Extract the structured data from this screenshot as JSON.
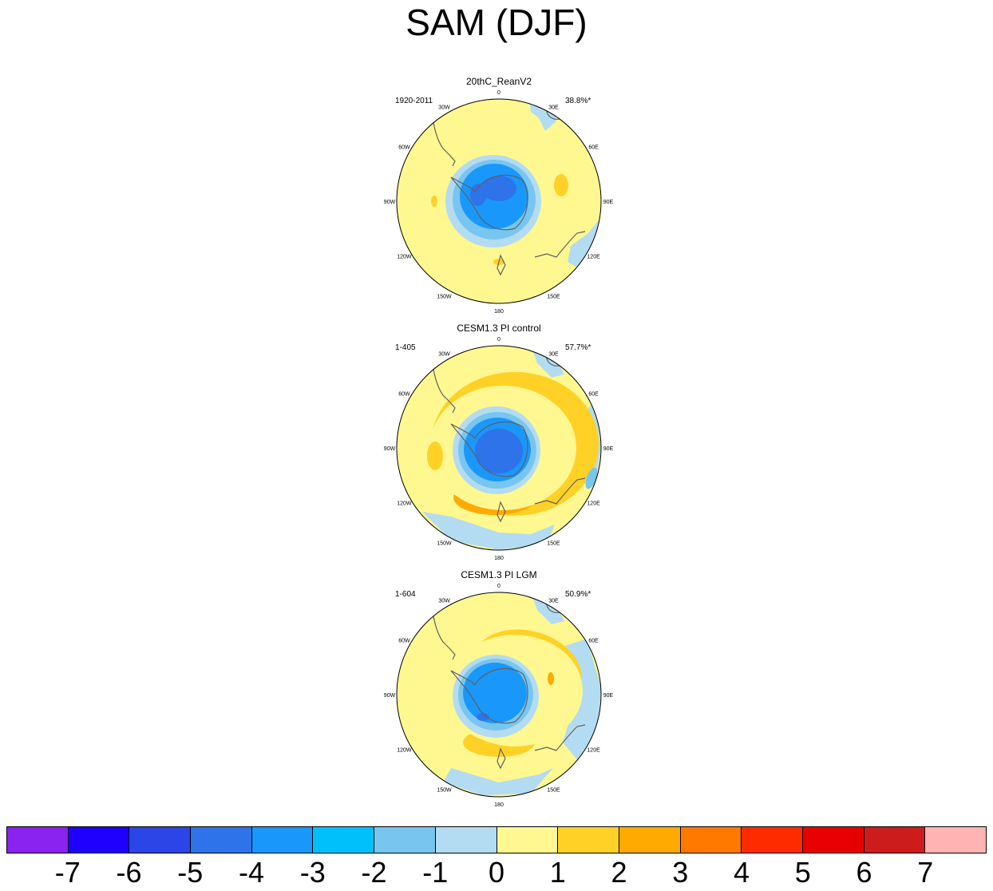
{
  "title": "SAM (DJF)",
  "lon_labels": [
    "0",
    "30E",
    "60E",
    "90E",
    "120E",
    "150E",
    "180",
    "150W",
    "120W",
    "90W",
    "60W",
    "30W"
  ],
  "panels": [
    {
      "title": "20thC_ReanV2",
      "period": "1920-2011",
      "pct": "38.8%*",
      "pattern": "rean"
    },
    {
      "title": "CESM1.3 PI control",
      "period": "1-405",
      "pct": "57.7%*",
      "pattern": "pic"
    },
    {
      "title": "CESM1.3 PI LGM",
      "period": "1-604",
      "pct": "50.9%*",
      "pattern": "lgm"
    }
  ],
  "colorbar": {
    "colors": [
      "#8a22f0",
      "#1f00ff",
      "#2b45e6",
      "#2f73ea",
      "#1a97fb",
      "#00c0fb",
      "#78c6f0",
      "#b3dcf2",
      "#fff890",
      "#ffd127",
      "#ffaa00",
      "#ff7800",
      "#ff2b00",
      "#e80000",
      "#cc1c1c",
      "#ffb3b3"
    ],
    "labels": [
      "-7",
      "-6",
      "-5",
      "-4",
      "-3",
      "-2",
      "-1",
      "0",
      "1",
      "2",
      "3",
      "4",
      "5",
      "6",
      "7"
    ]
  }
}
